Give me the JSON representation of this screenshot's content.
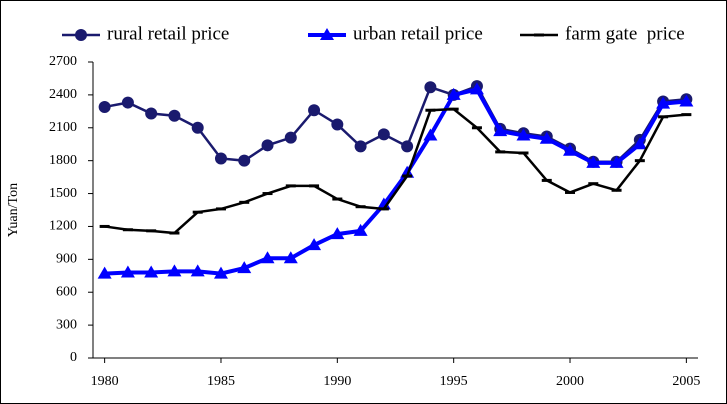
{
  "chart_data": {
    "type": "line",
    "y_label": "Yuan/Ton",
    "x": [
      1980,
      1981,
      1982,
      1983,
      1984,
      1985,
      1986,
      1987,
      1988,
      1989,
      1990,
      1991,
      1992,
      1993,
      1994,
      1995,
      1996,
      1997,
      1998,
      1999,
      2000,
      2001,
      2002,
      2003,
      2004,
      2005
    ],
    "series": [
      {
        "name": "rural retail price",
        "color": "#1a1a6e",
        "marker": "circle",
        "values": [
          2290,
          2330,
          2230,
          2210,
          2100,
          1820,
          1800,
          1940,
          2010,
          2260,
          2130,
          1930,
          2040,
          1930,
          2470,
          2400,
          2480,
          2090,
          2050,
          2020,
          1910,
          1790,
          1790,
          1990,
          2340,
          2360
        ]
      },
      {
        "name": "urban retail price",
        "color": "#0000ff",
        "marker": "triangle",
        "values": [
          770,
          780,
          780,
          790,
          790,
          770,
          820,
          910,
          910,
          1030,
          1130,
          1160,
          1400,
          1690,
          2030,
          2400,
          2450,
          2070,
          2030,
          2000,
          1890,
          1780,
          1780,
          1950,
          2320,
          2340
        ]
      },
      {
        "name": "farm gate  price",
        "color": "#000000",
        "marker": "dash",
        "values": [
          1200,
          1170,
          1160,
          1140,
          1330,
          1360,
          1420,
          1500,
          1570,
          1570,
          1450,
          1380,
          1360,
          1660,
          2260,
          2270,
          2100,
          1880,
          1870,
          1620,
          1510,
          1590,
          1530,
          1800,
          2200,
          2220
        ]
      }
    ],
    "xlim": [
      1979.5,
      2005.5
    ],
    "xticks": [
      1980,
      1985,
      1990,
      1995,
      2000,
      2005
    ],
    "ylim": [
      0,
      2700
    ],
    "yticks": [
      0,
      300,
      600,
      900,
      1200,
      1500,
      1800,
      2100,
      2400,
      2700
    ]
  }
}
